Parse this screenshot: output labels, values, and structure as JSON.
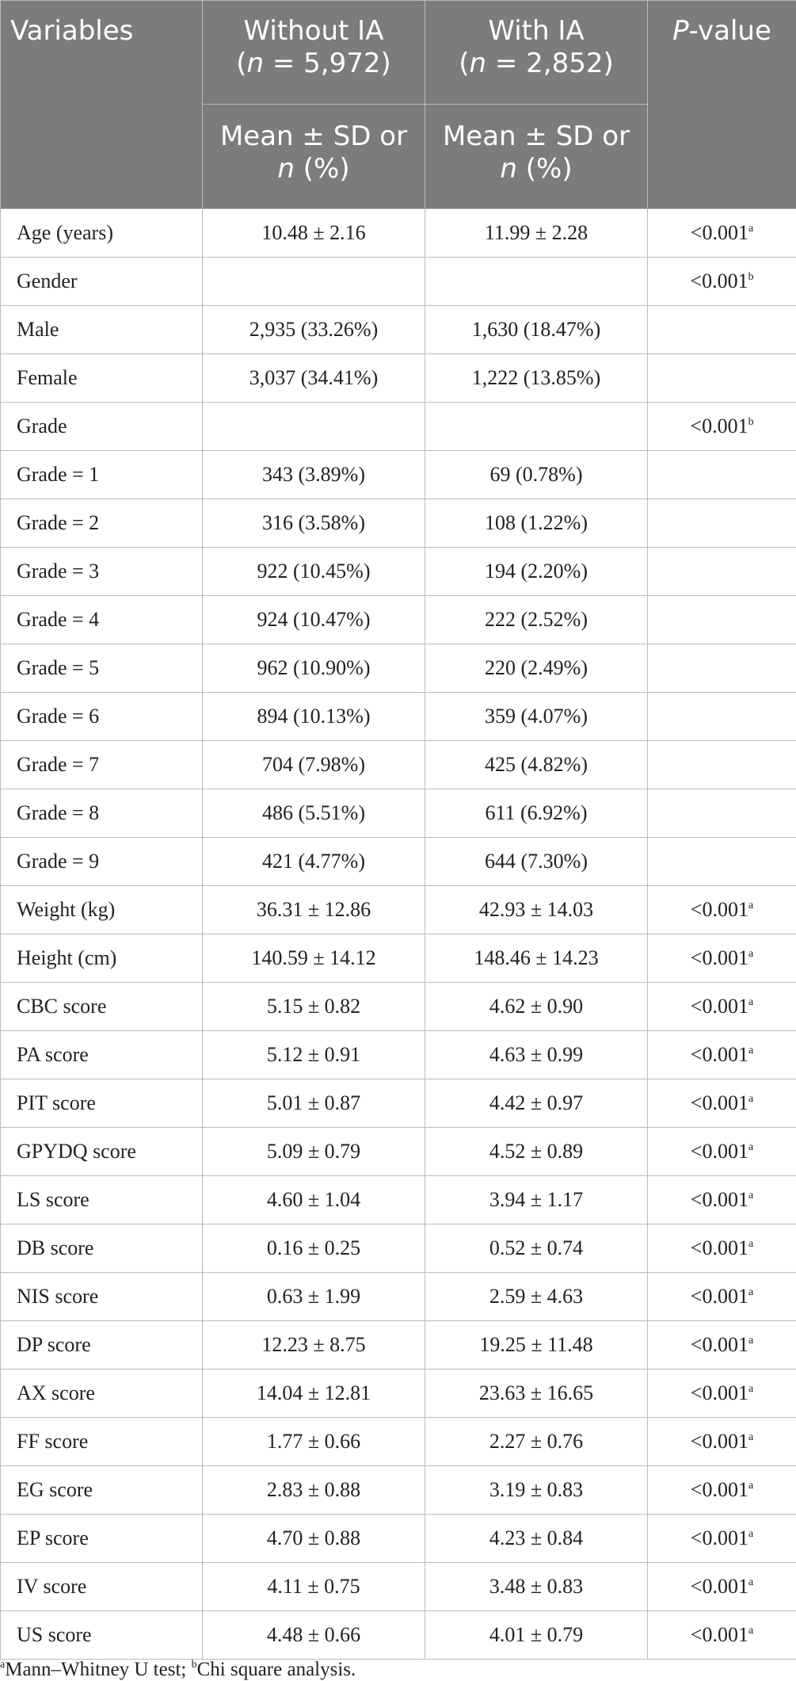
{
  "header": {
    "variables": "Variables",
    "without_ia": {
      "title": "Without IA",
      "n_prefix": "(",
      "n_label": "n",
      "n_value": " = 5,972)"
    },
    "with_ia": {
      "title": "With IA",
      "n_prefix": "(",
      "n_label": "n",
      "n_value": " = 2,852)"
    },
    "p_value": {
      "p": "P",
      "rest": "-value"
    },
    "stat_label": {
      "line1": "Mean ± SD or",
      "n": "n",
      "pct": " (%)"
    }
  },
  "rows": [
    {
      "name": "Age (years)",
      "without": "10.48 ± 2.16",
      "with": "11.99 ± 2.28",
      "p": "<0.001",
      "note": "a"
    },
    {
      "name": "Gender",
      "without": "",
      "with": "",
      "p": "<0.001",
      "note": "b"
    },
    {
      "name": "Male",
      "without": "2,935 (33.26%)",
      "with": "1,630 (18.47%)",
      "p": "",
      "note": ""
    },
    {
      "name": "Female",
      "without": "3,037 (34.41%)",
      "with": "1,222 (13.85%)",
      "p": "",
      "note": ""
    },
    {
      "name": "Grade",
      "without": "",
      "with": "",
      "p": "<0.001",
      "note": "b"
    },
    {
      "name": "Grade = 1",
      "without": "343 (3.89%)",
      "with": "69 (0.78%)",
      "p": "",
      "note": ""
    },
    {
      "name": "Grade = 2",
      "without": "316 (3.58%)",
      "with": "108 (1.22%)",
      "p": "",
      "note": ""
    },
    {
      "name": "Grade = 3",
      "without": "922 (10.45%)",
      "with": "194 (2.20%)",
      "p": "",
      "note": ""
    },
    {
      "name": "Grade = 4",
      "without": "924 (10.47%)",
      "with": "222 (2.52%)",
      "p": "",
      "note": ""
    },
    {
      "name": "Grade = 5",
      "without": "962 (10.90%)",
      "with": "220 (2.49%)",
      "p": "",
      "note": ""
    },
    {
      "name": "Grade = 6",
      "without": "894 (10.13%)",
      "with": "359 (4.07%)",
      "p": "",
      "note": ""
    },
    {
      "name": "Grade = 7",
      "without": "704 (7.98%)",
      "with": "425 (4.82%)",
      "p": "",
      "note": ""
    },
    {
      "name": "Grade = 8",
      "without": "486 (5.51%)",
      "with": "611 (6.92%)",
      "p": "",
      "note": ""
    },
    {
      "name": "Grade = 9",
      "without": "421 (4.77%)",
      "with": "644 (7.30%)",
      "p": "",
      "note": ""
    },
    {
      "name": "Weight (kg)",
      "without": "36.31 ± 12.86",
      "with": "42.93 ± 14.03",
      "p": "<0.001",
      "note": "a"
    },
    {
      "name": "Height (cm)",
      "without": "140.59 ± 14.12",
      "with": "148.46 ± 14.23",
      "p": "<0.001",
      "note": "a"
    },
    {
      "name": "CBC score",
      "without": "5.15 ± 0.82",
      "with": "4.62 ± 0.90",
      "p": "<0.001",
      "note": "a"
    },
    {
      "name": "PA score",
      "without": "5.12 ± 0.91",
      "with": "4.63 ± 0.99",
      "p": "<0.001",
      "note": "a"
    },
    {
      "name": "PIT score",
      "without": "5.01 ± 0.87",
      "with": "4.42 ± 0.97",
      "p": "<0.001",
      "note": "a"
    },
    {
      "name": "GPYDQ score",
      "without": "5.09 ± 0.79",
      "with": "4.52 ± 0.89",
      "p": "<0.001",
      "note": "a"
    },
    {
      "name": "LS score",
      "without": "4.60 ± 1.04",
      "with": "3.94 ± 1.17",
      "p": "<0.001",
      "note": "a"
    },
    {
      "name": "DB score",
      "without": "0.16 ± 0.25",
      "with": "0.52 ± 0.74",
      "p": "<0.001",
      "note": "a"
    },
    {
      "name": "NIS score",
      "without": "0.63 ± 1.99",
      "with": "2.59 ± 4.63",
      "p": "<0.001",
      "note": "a"
    },
    {
      "name": "DP score",
      "without": "12.23 ± 8.75",
      "with": "19.25 ± 11.48",
      "p": "<0.001",
      "note": "a"
    },
    {
      "name": "AX score",
      "without": "14.04 ± 12.81",
      "with": "23.63 ± 16.65",
      "p": "<0.001",
      "note": "a"
    },
    {
      "name": "FF score",
      "without": "1.77 ± 0.66",
      "with": "2.27 ± 0.76",
      "p": "<0.001",
      "note": "a"
    },
    {
      "name": "EG score",
      "without": "2.83 ± 0.88",
      "with": "3.19 ± 0.83",
      "p": "<0.001",
      "note": "a"
    },
    {
      "name": "EP score",
      "without": "4.70 ± 0.88",
      "with": "4.23 ± 0.84",
      "p": "<0.001",
      "note": "a"
    },
    {
      "name": "IV score",
      "without": "4.11 ± 0.75",
      "with": "3.48 ± 0.83",
      "p": "<0.001",
      "note": "a"
    },
    {
      "name": "US score",
      "without": "4.48 ± 0.66",
      "with": "4.01 ± 0.79",
      "p": "<0.001",
      "note": "a"
    }
  ],
  "footnote": {
    "a_mark": "a",
    "a_text": "Mann–Whitney U test; ",
    "b_mark": "b",
    "b_text": "Chi square analysis."
  },
  "colors": {
    "header_bg": "#7b7d7c",
    "grid": "#b9bbba",
    "text": "#222222"
  }
}
